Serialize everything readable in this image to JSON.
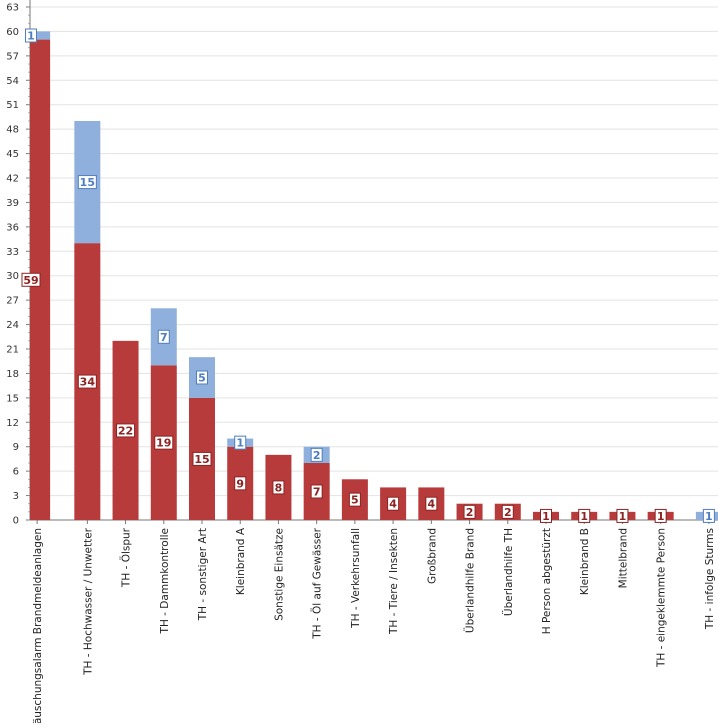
{
  "chart_data": {
    "type": "bar",
    "stacked": true,
    "title": "",
    "xlabel": "",
    "ylabel": "",
    "ylim": [
      0,
      63
    ],
    "ytick_step": 3,
    "grid": true,
    "legend": "none",
    "categories": [
      "Täuschungsalarm Brandmeldeanlagen",
      "TH - Hochwasser / Unwetter",
      "TH - Ölspur",
      "TH - Dammkontrolle",
      "TH - sonstiger Art",
      "Kleinbrand A",
      "Sonstige Einsätze",
      "TH - Öl auf Gewässer",
      "TH - Verkehrsunfall",
      "TH - Tiere / Insekten",
      "Großbrand",
      "Überlandhilfe Brand",
      "Überlandhilfe TH",
      "H Person abgestürzt",
      "Kleinbrand B",
      "Mittelbrand",
      "TH - eingeklemmte Person",
      "TH - infolge Sturms"
    ],
    "series": [
      {
        "color": "#b83b3b",
        "values": [
          59,
          34,
          22,
          19,
          15,
          9,
          8,
          7,
          5,
          4,
          4,
          2,
          2,
          1,
          1,
          1,
          1,
          0
        ]
      },
      {
        "color": "#8fb0dc",
        "values": [
          1,
          15,
          0,
          7,
          5,
          1,
          0,
          2,
          0,
          0,
          0,
          0,
          0,
          0,
          0,
          0,
          0,
          1
        ]
      }
    ]
  }
}
